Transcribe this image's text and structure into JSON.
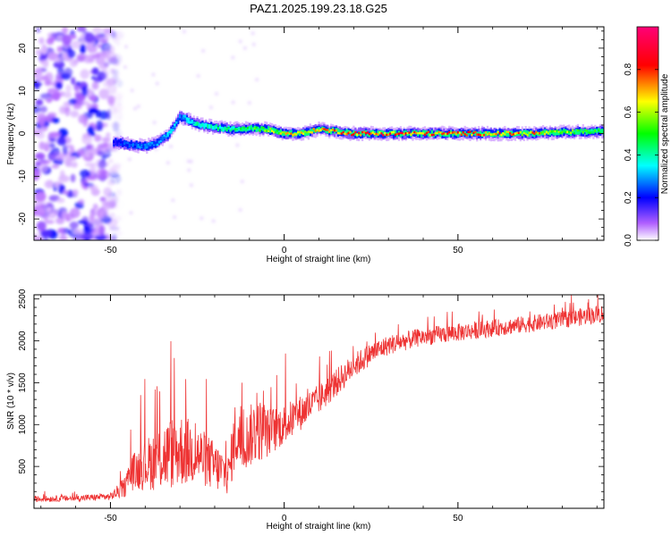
{
  "title": "PAZ1.2025.199.23.18.G25",
  "charts": [
    {
      "type": "heatmap",
      "xlabel": "Height of straight line (km)",
      "ylabel": "Frequency (Hz)",
      "xlim": [
        -72,
        92
      ],
      "ylim": [
        -25,
        25
      ],
      "xticks": [
        -50,
        0,
        50
      ],
      "yticks": [
        -20,
        -10,
        0,
        10,
        20
      ],
      "colorbar": {
        "label": "Normalized spectral amplitude",
        "range": [
          0,
          1
        ],
        "ticks": [
          0.0,
          0.2,
          0.4,
          0.6,
          0.8
        ],
        "tick_labels": [
          "0.0",
          "0.2",
          "0.4",
          "0.6",
          "0.8"
        ],
        "colormap": [
          "#ffffff",
          "#8a00ff",
          "#0000ff",
          "#00ffff",
          "#00ff00",
          "#ffff00",
          "#ff0000",
          "#ff00cc"
        ]
      },
      "noise_region_x": [
        -72,
        -47
      ],
      "ridge": {
        "x": [
          -49,
          -45,
          -40,
          -36,
          -33,
          -30,
          -27,
          -24,
          -20,
          -15,
          -10,
          -5,
          0,
          5,
          10,
          15,
          20,
          30,
          40,
          50,
          60,
          70,
          80,
          90
        ],
        "freq": [
          -2,
          -2.5,
          -3,
          -2,
          0,
          4,
          3,
          2,
          1.5,
          1,
          1.2,
          1,
          0,
          0,
          1,
          0.5,
          0,
          0,
          0,
          0,
          0,
          0,
          0.3,
          0.5
        ],
        "amplitude": [
          0.2,
          0.25,
          0.28,
          0.3,
          0.35,
          0.3,
          0.38,
          0.4,
          0.42,
          0.45,
          0.5,
          0.55,
          0.7,
          0.72,
          0.75,
          0.78,
          0.8,
          0.85,
          0.8,
          0.8,
          0.78,
          0.75,
          0.6,
          0.5
        ]
      }
    },
    {
      "type": "line",
      "xlabel": "Height of straight line (km)",
      "ylabel": "SNR (10 * v/v)",
      "xlim": [
        -72,
        92
      ],
      "ylim": [
        0,
        2550
      ],
      "xticks": [
        -50,
        0,
        50
      ],
      "yticks": [
        500,
        1000,
        1500,
        2000,
        2500
      ],
      "color": "#ee3333",
      "envelope": {
        "x": [
          -72,
          -60,
          -50,
          -46,
          -44,
          -40,
          -35,
          -30,
          -25,
          -20,
          -16,
          -14,
          -12,
          -8,
          -5,
          0,
          5,
          10,
          15,
          20,
          25,
          30,
          40,
          50,
          60,
          70,
          80,
          92
        ],
        "base": [
          110,
          120,
          140,
          250,
          420,
          520,
          620,
          700,
          650,
          500,
          400,
          900,
          750,
          950,
          900,
          1000,
          1150,
          1300,
          1500,
          1700,
          1850,
          1950,
          2050,
          2100,
          2150,
          2200,
          2250,
          2330
        ],
        "spread": [
          60,
          60,
          70,
          200,
          350,
          500,
          700,
          750,
          600,
          500,
          400,
          700,
          500,
          700,
          500,
          400,
          350,
          300,
          280,
          250,
          220,
          200,
          180,
          180,
          170,
          170,
          170,
          180
        ]
      }
    }
  ]
}
